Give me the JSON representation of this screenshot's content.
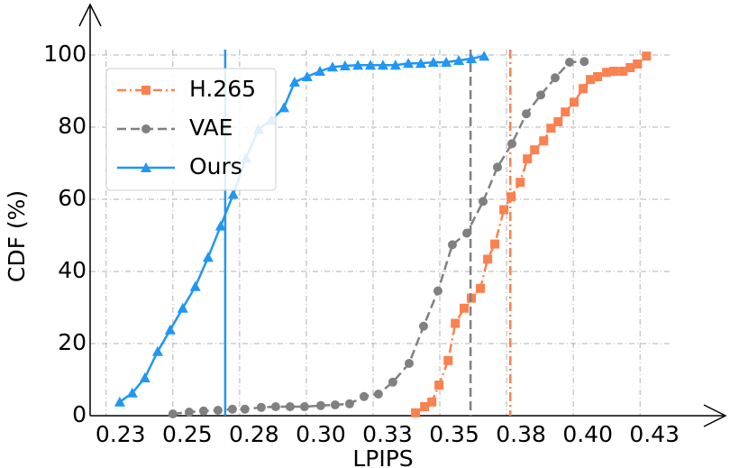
{
  "chart_data": {
    "type": "line",
    "xlabel": "LPIPS",
    "ylabel": "CDF (%)",
    "xlim": [
      0.219,
      0.457
    ],
    "ylim": [
      0,
      114
    ],
    "xticks": [
      {
        "value": 0.225,
        "label": "0.23"
      },
      {
        "value": 0.25,
        "label": "0.25"
      },
      {
        "value": 0.275,
        "label": "0.28"
      },
      {
        "value": 0.3,
        "label": "0.30"
      },
      {
        "value": 0.325,
        "label": "0.33"
      },
      {
        "value": 0.35,
        "label": "0.35"
      },
      {
        "value": 0.375,
        "label": "0.38"
      },
      {
        "value": 0.4,
        "label": "0.40"
      },
      {
        "value": 0.425,
        "label": "0.43"
      }
    ],
    "yticks": [
      0,
      20,
      40,
      60,
      80,
      100
    ],
    "grid": true,
    "legend": "upper left",
    "series": [
      {
        "name": "H.265",
        "color": "#fa8150",
        "marker": "square",
        "dash": "dashdot",
        "vline": 0.3764,
        "x": [
          0.3409,
          0.3443,
          0.347,
          0.3497,
          0.3531,
          0.3558,
          0.3591,
          0.3618,
          0.3652,
          0.3679,
          0.3706,
          0.374,
          0.3767,
          0.3801,
          0.3828,
          0.3855,
          0.3889,
          0.3916,
          0.3943,
          0.397,
          0.4003,
          0.4037,
          0.4064,
          0.4091,
          0.4125,
          0.4152,
          0.4186,
          0.4213,
          0.424,
          0.4274
        ],
        "values": [
          0.8,
          2.5,
          3.8,
          8.5,
          15.3,
          25.6,
          29.8,
          32.6,
          35.3,
          43.4,
          47.6,
          57.1,
          60.7,
          64.7,
          71.2,
          73.7,
          76.2,
          79.7,
          81.5,
          84.2,
          86.9,
          90.7,
          93.2,
          94.0,
          95.2,
          95.5,
          95.5,
          96.5,
          97.5,
          99.7
        ]
      },
      {
        "name": "VAE",
        "color": "#808080",
        "marker": "circle",
        "dash": "dashed",
        "vline": 0.3615,
        "x": [
          0.25,
          0.2561,
          0.2615,
          0.2669,
          0.2723,
          0.277,
          0.2831,
          0.2885,
          0.2939,
          0.2993,
          0.3054,
          0.3108,
          0.3162,
          0.3216,
          0.327,
          0.3324,
          0.3385,
          0.3439,
          0.3493,
          0.3547,
          0.3601,
          0.3662,
          0.3716,
          0.377,
          0.3824,
          0.3878,
          0.3932,
          0.3986,
          0.4041
        ],
        "values": [
          0.5,
          1.0,
          1.3,
          1.5,
          1.8,
          1.8,
          2.3,
          2.5,
          2.5,
          2.5,
          2.8,
          3.0,
          3.3,
          5.3,
          6.0,
          9.3,
          14.5,
          24.8,
          34.6,
          47.4,
          50.6,
          59.4,
          68.9,
          75.4,
          83.7,
          88.9,
          93.7,
          98.0,
          98.2
        ]
      },
      {
        "name": "Ours",
        "color": "#2196f3",
        "marker": "triangle",
        "dash": "solid",
        "vline": 0.2696,
        "x": [
          0.2301,
          0.2348,
          0.2395,
          0.2443,
          0.249,
          0.2537,
          0.2584,
          0.2632,
          0.2679,
          0.2726,
          0.2774,
          0.2821,
          0.2868,
          0.2916,
          0.2956,
          0.3003,
          0.3051,
          0.3098,
          0.3145,
          0.3193,
          0.324,
          0.3287,
          0.3334,
          0.3382,
          0.3429,
          0.3476,
          0.3524,
          0.3571,
          0.3618,
          0.3666
        ],
        "values": [
          3.8,
          6.3,
          10.5,
          17.8,
          23.8,
          29.8,
          35.8,
          43.9,
          52.6,
          61.4,
          71.4,
          79.4,
          81.9,
          85.4,
          92.5,
          94.0,
          95.5,
          96.7,
          97.0,
          97.2,
          97.2,
          97.2,
          97.2,
          97.7,
          97.7,
          98.0,
          98.0,
          98.5,
          99.0,
          99.7
        ]
      }
    ]
  }
}
